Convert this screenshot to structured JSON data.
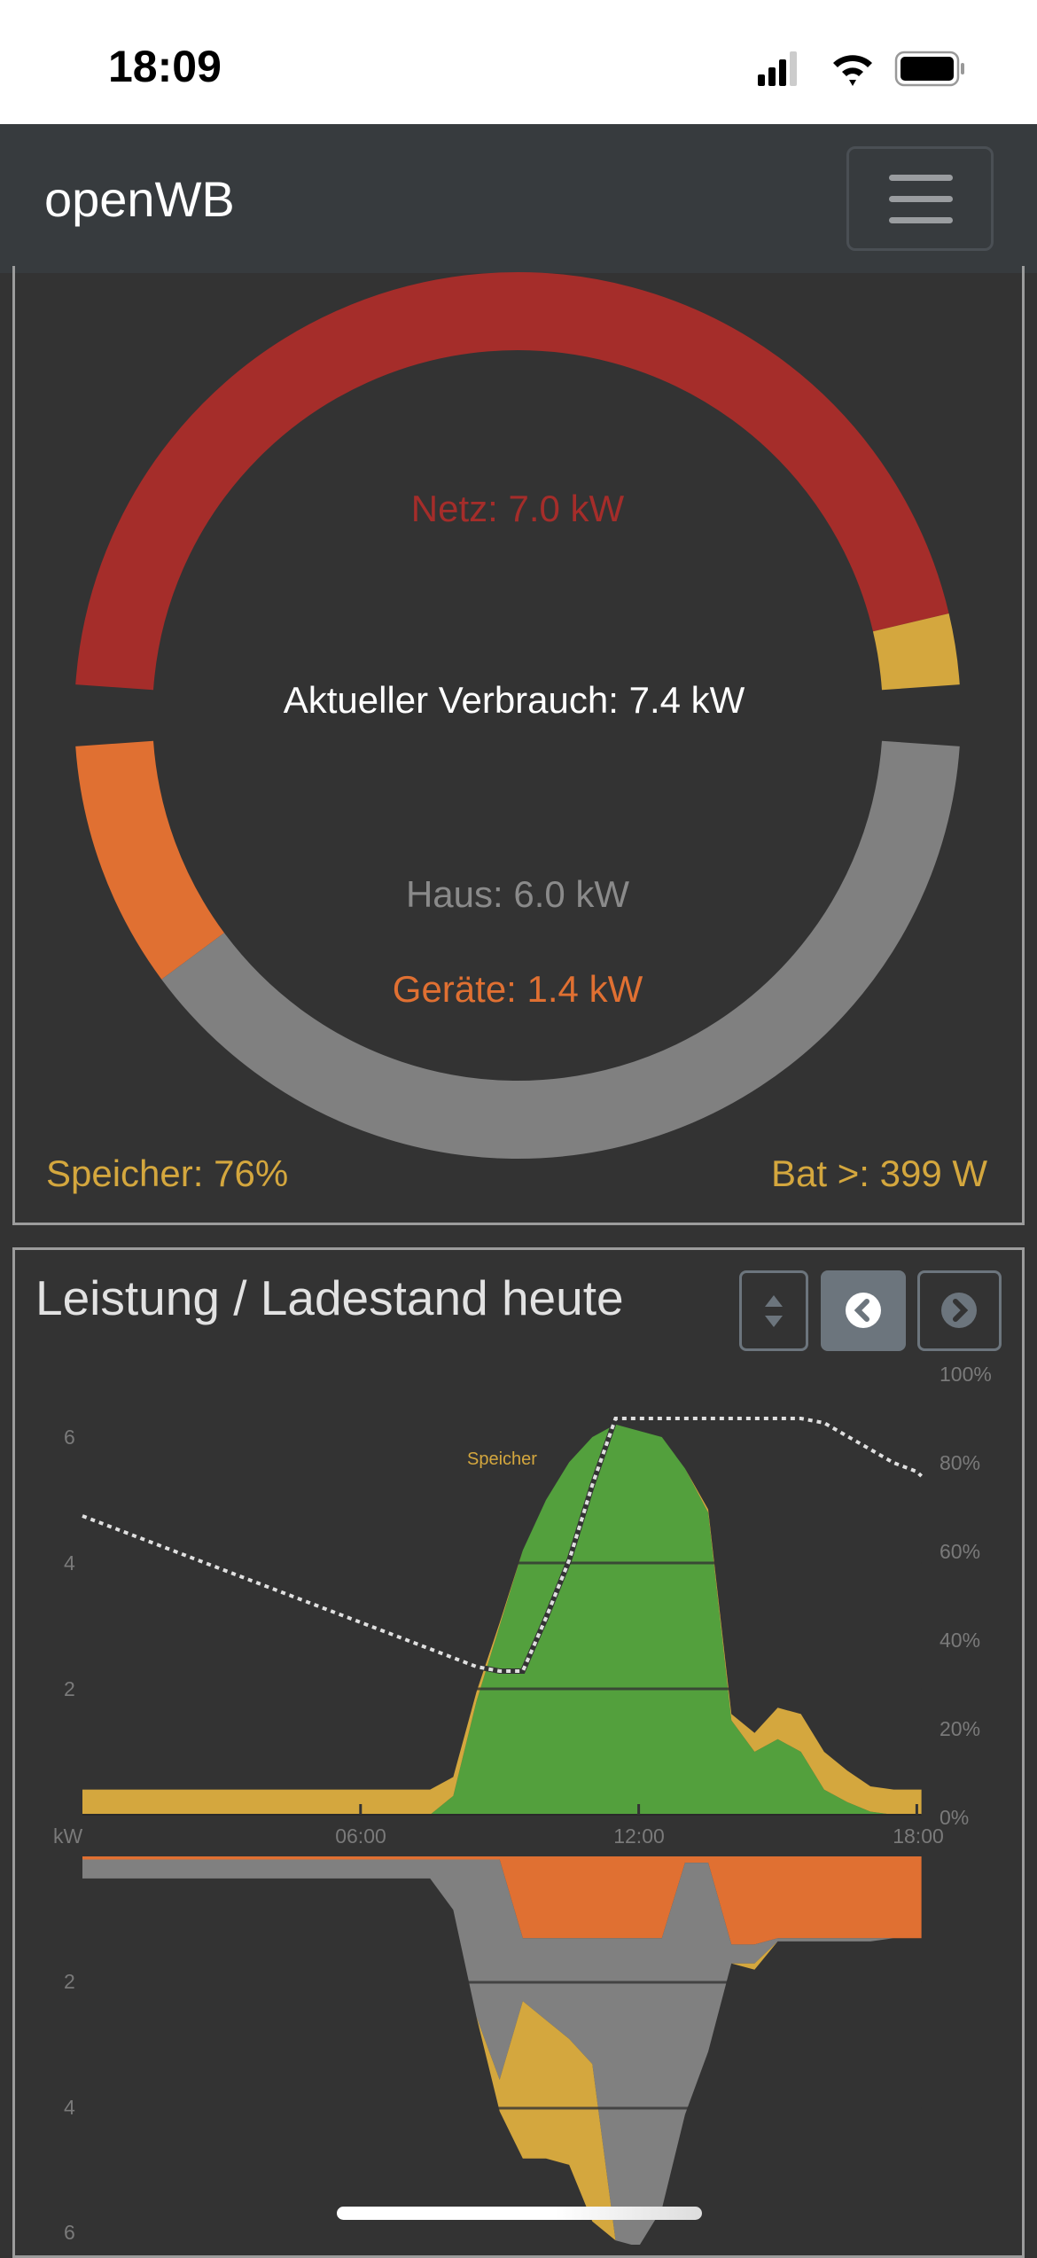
{
  "status_bar": {
    "time": "18:09",
    "icons": [
      "cellular-signal-icon",
      "wifi-icon",
      "battery-icon"
    ]
  },
  "navbar": {
    "brand": "openWB",
    "menu_icon": "hamburger-menu-icon"
  },
  "power_overview": {
    "grid_label": "Netz: 7.0 kW",
    "consumption_label": "Aktueller Verbrauch: 7.4 kW",
    "house_label": "Haus: 6.0 kW",
    "devices_label": "Geräte: 1.4 kW",
    "storage_soc_label": "Speicher: 76%",
    "battery_label": "Bat >: 399 W",
    "sources_kw": {
      "grid": 7.0,
      "battery": 0.4
    },
    "consumers_kw": {
      "house": 6.0,
      "devices": 1.4
    },
    "colors": {
      "grid": "#a52d2a",
      "battery": "#d4a73e",
      "devices": "#e07032",
      "house": "#808080"
    }
  },
  "history": {
    "title": "Leistung / Ladestand heute",
    "buttons": {
      "toggle_icon": "sort-up-down-icon",
      "prev_icon": "chevron-circle-left-icon",
      "next_icon": "chevron-circle-right-icon"
    }
  },
  "chart_data": {
    "type": "area",
    "xlabel": "",
    "ylabel": "kW",
    "x_ticks": [
      "06:00",
      "12:00",
      "18:00"
    ],
    "y_ticks_top": [
      "2",
      "4",
      "6"
    ],
    "y_ticks_bottom": [
      "2",
      "4",
      "6"
    ],
    "y_ticks_right": [
      "100%",
      "80%",
      "60%",
      "40%",
      "20%",
      "0%"
    ],
    "annotation": "Speicher",
    "x_hours": [
      0,
      0.5,
      1,
      1.5,
      2,
      2.5,
      3,
      3.5,
      4,
      4.5,
      5,
      5.5,
      6,
      6.5,
      7,
      7.5,
      8,
      8.5,
      9,
      9.5,
      10,
      10.5,
      11,
      11.5,
      12,
      12.5,
      13,
      13.5,
      14,
      14.5,
      15,
      15.5,
      16,
      16.5,
      17,
      17.5,
      18,
      18.1
    ],
    "top_series": [
      {
        "color": "#53a03d",
        "values": [
          0,
          0,
          0,
          0,
          0,
          0,
          0,
          0,
          0,
          0,
          0,
          0,
          0,
          0,
          0,
          0,
          0.3,
          1.8,
          3.0,
          4.2,
          5.0,
          5.6,
          6.0,
          6.2,
          6.1,
          6.0,
          5.5,
          4.8,
          1.5,
          1.0,
          1.2,
          1.0,
          0.4,
          0.2,
          0.05,
          0,
          0,
          0
        ]
      },
      {
        "color": "#d4a73e",
        "values": [
          0.4,
          0.4,
          0.4,
          0.4,
          0.4,
          0.4,
          0.4,
          0.4,
          0.4,
          0.4,
          0.4,
          0.4,
          0.4,
          0.4,
          0.4,
          0.4,
          0.3,
          0.15,
          0.05,
          0,
          0,
          0,
          0,
          0,
          0,
          0,
          0,
          0.05,
          0.1,
          0.3,
          0.5,
          0.6,
          0.6,
          0.5,
          0.4,
          0.4,
          0.4,
          0.4
        ]
      }
    ],
    "soc_percent": [
      68,
      66,
      64,
      62,
      60,
      58,
      56,
      54,
      52,
      50,
      48,
      46,
      44,
      42,
      40,
      38,
      36,
      34,
      33,
      33,
      45,
      58,
      75,
      90,
      90,
      90,
      90,
      90,
      90,
      90,
      90,
      90,
      89,
      86,
      83,
      80,
      78,
      77
    ],
    "bottom_series": [
      {
        "color": "#e07032",
        "values": [
          0.05,
          0.05,
          0.05,
          0.05,
          0.05,
          0.05,
          0.05,
          0.05,
          0.05,
          0.05,
          0.05,
          0.05,
          0.05,
          0.05,
          0.05,
          0.05,
          0.05,
          0.05,
          0.05,
          1.3,
          1.3,
          1.3,
          1.3,
          1.3,
          1.3,
          1.3,
          0.1,
          0.1,
          1.4,
          1.4,
          1.3,
          1.3,
          1.3,
          1.3,
          1.3,
          1.3,
          1.3,
          1.3
        ]
      },
      {
        "color": "#808080",
        "values": [
          0.3,
          0.3,
          0.3,
          0.3,
          0.3,
          0.3,
          0.3,
          0.3,
          0.3,
          0.3,
          0.3,
          0.3,
          0.3,
          0.3,
          0.3,
          0.3,
          0.8,
          2.5,
          3.5,
          1.0,
          1.3,
          1.6,
          2.0,
          4.8,
          4.9,
          4.3,
          4.0,
          3.0,
          0.3,
          0.3,
          0.05,
          0.05,
          0.05,
          0.05,
          0.05,
          0,
          0,
          0
        ]
      },
      {
        "color": "#d4a73e",
        "values": [
          0,
          0,
          0,
          0,
          0,
          0,
          0,
          0,
          0,
          0,
          0,
          0,
          0,
          0,
          0,
          0,
          0,
          0,
          0.5,
          2.5,
          2.2,
          2.0,
          2.5,
          0,
          0,
          0,
          0,
          0,
          0,
          0.1,
          0,
          0,
          0,
          0,
          0,
          0,
          0,
          0
        ]
      }
    ],
    "ylim_kw": [
      0,
      7
    ],
    "ylim_soc": [
      0,
      100
    ],
    "grid": true
  }
}
